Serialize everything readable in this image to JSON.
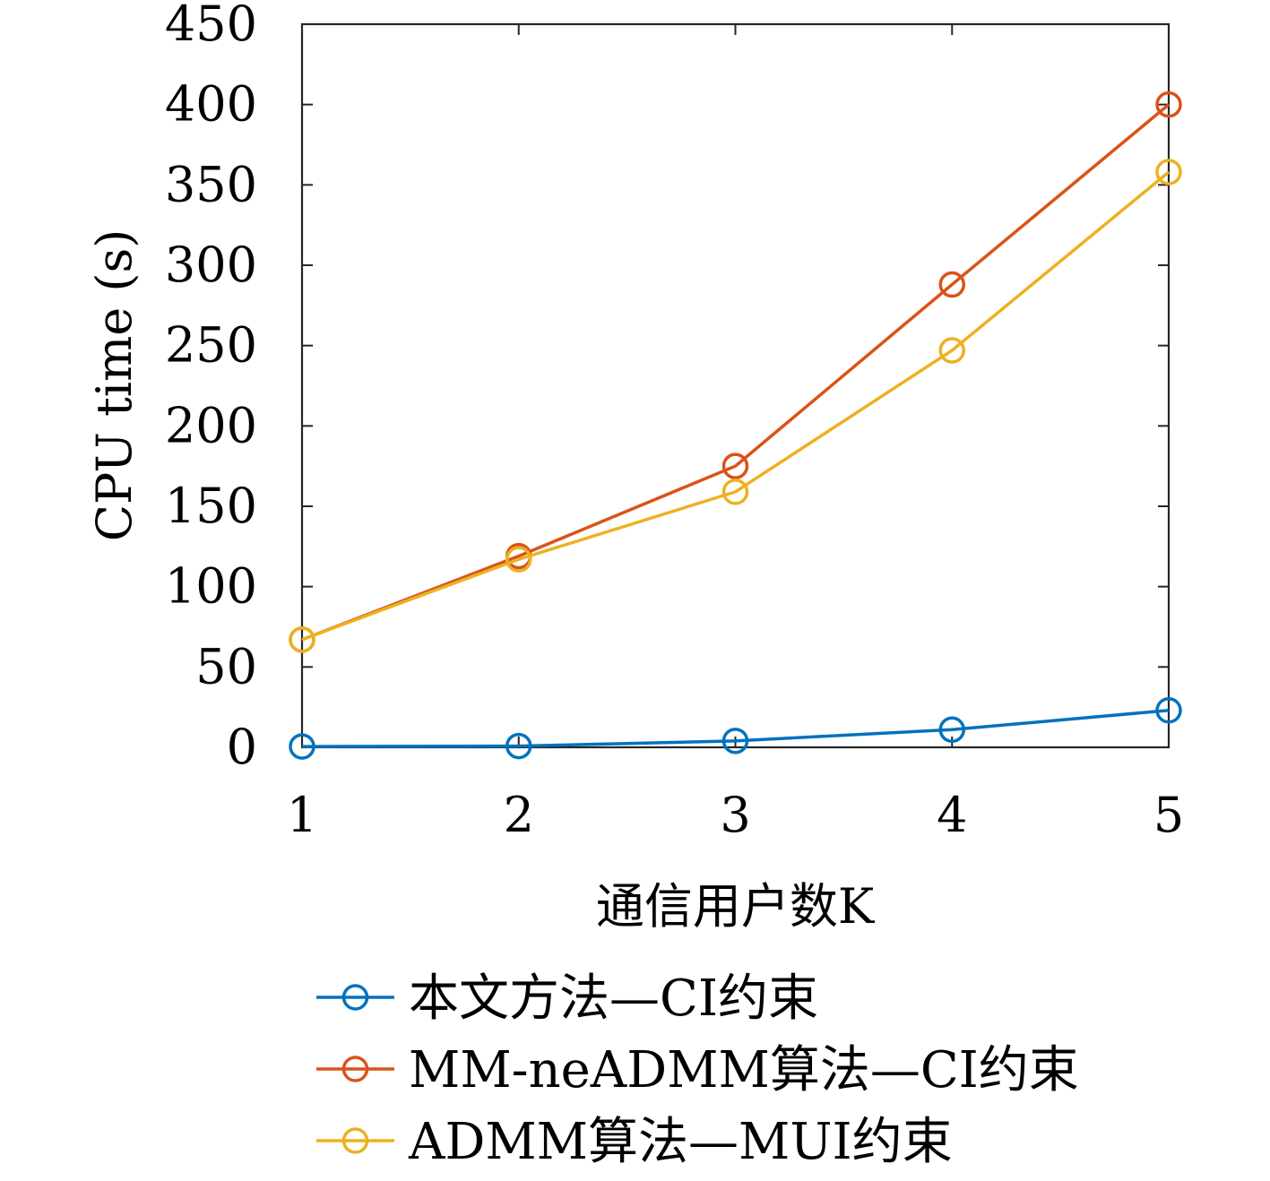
{
  "chart_data": {
    "type": "line",
    "title": "",
    "xlabel": "通信用户数K",
    "ylabel": "CPU time (s)",
    "x": [
      1,
      2,
      3,
      4,
      5
    ],
    "xlim": [
      1,
      5
    ],
    "ylim": [
      0,
      450
    ],
    "xticks": [
      "1",
      "2",
      "3",
      "4",
      "5"
    ],
    "yticks": [
      "0",
      "50",
      "100",
      "150",
      "200",
      "250",
      "300",
      "350",
      "400",
      "450"
    ],
    "grid": false,
    "legend_position": "bottom",
    "series": [
      {
        "name": "本文方法—CI约束",
        "color": "#0072BD",
        "marker": "circle",
        "values": [
          0.5,
          0.8,
          4,
          11,
          23
        ]
      },
      {
        "name": "MM-neADMM算法—CI约束",
        "color": "#D95319",
        "marker": "circle",
        "values": [
          67,
          119,
          175,
          288,
          400
        ]
      },
      {
        "name": "ADMM算法—MUI约束",
        "color": "#EDB120",
        "marker": "circle",
        "values": [
          67,
          117,
          159,
          247,
          358
        ]
      }
    ]
  }
}
